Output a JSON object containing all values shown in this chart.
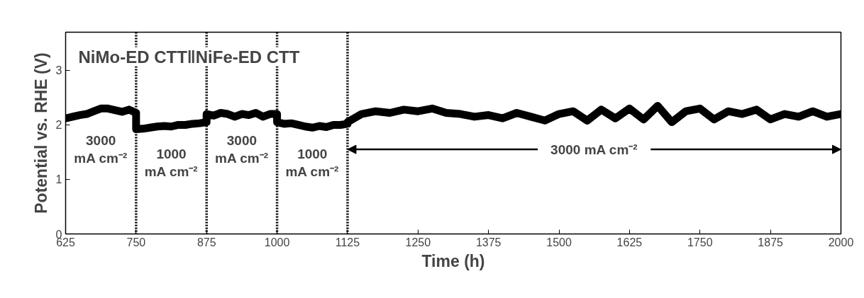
{
  "chart_data": {
    "type": "line",
    "xlabel": "Time (h)",
    "ylabel": "Potential vs. RHE (V)",
    "xlim": [
      625,
      2000
    ],
    "xticks": [
      625,
      750,
      875,
      1000,
      1125,
      1250,
      1375,
      1500,
      1625,
      1750,
      1875,
      2000
    ],
    "ylim": [
      0,
      3.7
    ],
    "yticks": [
      0,
      1,
      2,
      3
    ],
    "grid": false,
    "line_style": "solid",
    "series": [
      {
        "color": "#000000",
        "x": [
          625,
          637.5,
          650,
          662.5,
          675,
          687.5,
          700,
          712.5,
          725,
          737.5,
          750,
          750,
          762.5,
          775,
          787.5,
          800,
          812.5,
          825,
          837.5,
          850,
          862.5,
          875,
          875,
          887.5,
          900,
          912.5,
          925,
          937.5,
          950,
          962.5,
          975,
          987.5,
          1000,
          1000,
          1012.5,
          1025,
          1037.5,
          1050,
          1062.5,
          1075,
          1087.5,
          1100,
          1112.5,
          1125,
          1125,
          1150,
          1175,
          1200,
          1225,
          1250,
          1275,
          1300,
          1325,
          1350,
          1375,
          1400,
          1425,
          1450,
          1475,
          1500,
          1525,
          1550,
          1575,
          1600,
          1625,
          1650,
          1675,
          1700,
          1725,
          1750,
          1775,
          1800,
          1825,
          1850,
          1875,
          1900,
          1925,
          1950,
          1975,
          2000
        ],
        "values": [
          2.12,
          2.15,
          2.18,
          2.2,
          2.25,
          2.3,
          2.3,
          2.27,
          2.24,
          2.28,
          2.22,
          1.92,
          1.93,
          1.95,
          1.97,
          1.98,
          1.97,
          2.0,
          2.0,
          2.02,
          2.03,
          2.05,
          2.2,
          2.17,
          2.22,
          2.2,
          2.15,
          2.2,
          2.18,
          2.22,
          2.15,
          2.2,
          2.2,
          2.05,
          2.02,
          2.03,
          2.0,
          1.97,
          1.95,
          1.98,
          1.96,
          2.0,
          2.0,
          2.02,
          2.05,
          2.2,
          2.25,
          2.22,
          2.28,
          2.25,
          2.3,
          2.22,
          2.2,
          2.15,
          2.18,
          2.12,
          2.22,
          2.15,
          2.08,
          2.2,
          2.25,
          2.08,
          2.28,
          2.12,
          2.3,
          2.1,
          2.35,
          2.05,
          2.25,
          2.3,
          2.1,
          2.25,
          2.2,
          2.28,
          2.1,
          2.2,
          2.15,
          2.25,
          2.15,
          2.2
        ]
      }
    ],
    "ref_lines": [
      {
        "axis": "x",
        "value": 750,
        "line_style": "dotted"
      },
      {
        "axis": "x",
        "value": 875,
        "line_style": "dotted"
      },
      {
        "axis": "x",
        "value": 1000,
        "line_style": "dotted"
      },
      {
        "axis": "x",
        "value": 1125,
        "line_style": "dotted"
      }
    ],
    "annotations": [
      "NiMo-ED CTT‖NiFe-ED CTT",
      "3000\nmA cm⁻²",
      "1000\nmA cm⁻²",
      "3000\nmA cm⁻²",
      "1000\nmA cm⁻²",
      "3000 mA cm⁻²"
    ]
  }
}
